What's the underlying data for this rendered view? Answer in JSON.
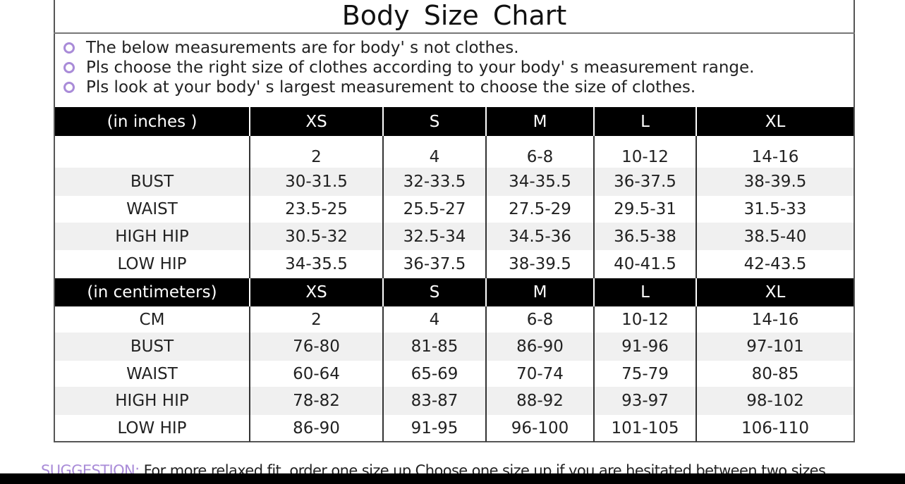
{
  "title": "Body Size Chart",
  "notes": [
    "The below measurements are for  body' s not clothes.",
    "Pls choose the right size of clothes according to your body' s  measurement range.",
    "Pls look  at your body' s  largest measurement to choose the size of clothes."
  ],
  "accent_color": "#a98bd8",
  "inches": {
    "header": [
      "(in  inches )",
      "XS",
      "S",
      "M",
      "L",
      "XL"
    ],
    "rows": [
      [
        "",
        "2",
        "4",
        "6-8",
        "10-12",
        "14-16"
      ],
      [
        "BUST",
        "30-31.5",
        "32-33.5",
        "34-35.5",
        "36-37.5",
        "38-39.5"
      ],
      [
        "WAIST",
        "23.5-25",
        "25.5-27",
        "27.5-29",
        "29.5-31",
        "31.5-33"
      ],
      [
        "HIGH HIP",
        "30.5-32",
        "32.5-34",
        "34.5-36",
        "36.5-38",
        "38.5-40"
      ],
      [
        "LOW HIP",
        "34-35.5",
        "36-37.5",
        "38-39.5",
        "40-41.5",
        "42-43.5"
      ]
    ]
  },
  "centimeters": {
    "header": [
      "(in centimeters)",
      "XS",
      "S",
      "M",
      "L",
      "XL"
    ],
    "rows": [
      [
        "CM",
        "2",
        "4",
        "6-8",
        "10-12",
        "14-16"
      ],
      [
        "BUST",
        "76-80",
        "81-85",
        "86-90",
        "91-96",
        "97-101"
      ],
      [
        "WAIST",
        "60-64",
        "65-69",
        "70-74",
        "75-79",
        "80-85"
      ],
      [
        "HIGH HIP",
        "78-82",
        "83-87",
        "88-92",
        "93-97",
        "98-102"
      ],
      [
        "LOW HIP",
        "86-90",
        "91-95",
        "96-100",
        "101-105",
        "106-110"
      ]
    ]
  },
  "suggestion": {
    "label": "SUGGESTION:",
    "text": " For more relaxed fit, order one size up.Choose one size up if you are hesitated between two sizes."
  }
}
